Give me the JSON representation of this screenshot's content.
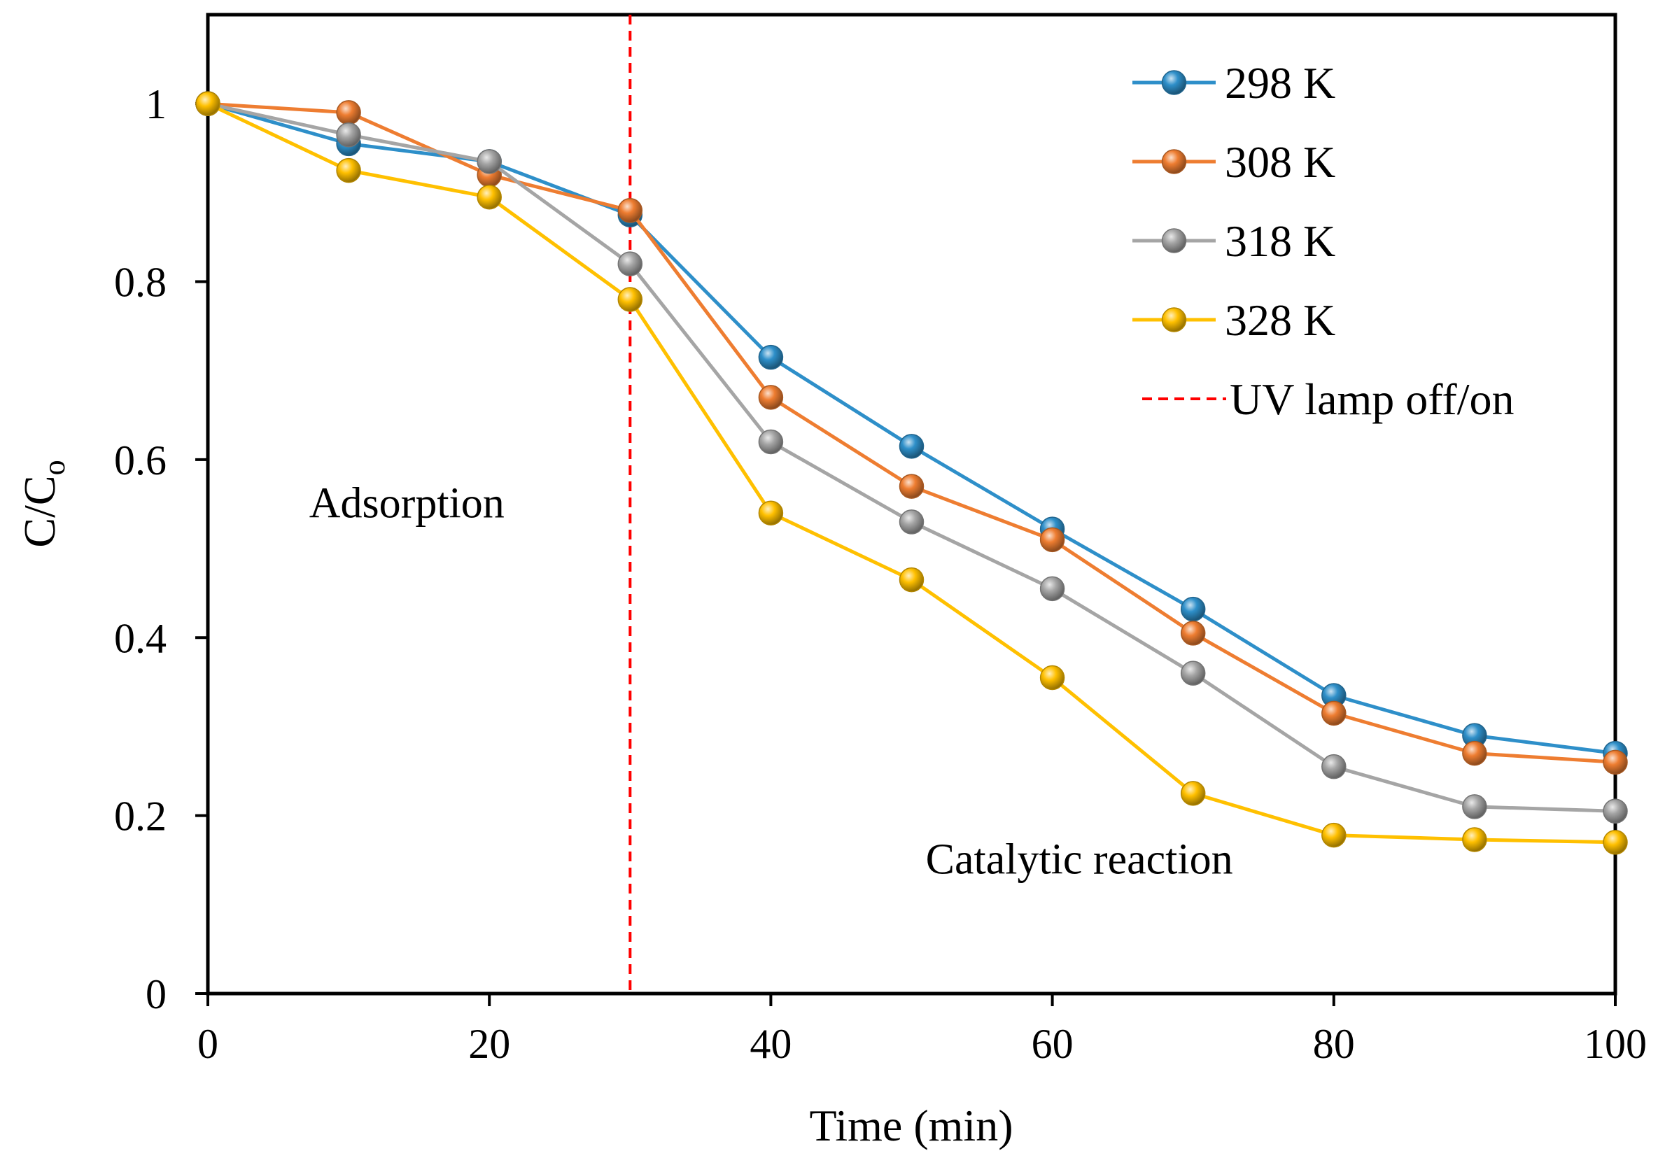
{
  "chart_data": {
    "type": "line",
    "xlabel": "Time (min)",
    "ylabel_main": "C/C",
    "ylabel_sub": "o",
    "x": [
      0,
      10,
      20,
      30,
      40,
      50,
      60,
      70,
      80,
      90,
      100
    ],
    "xlim": [
      0,
      100
    ],
    "ylim": [
      0,
      1.1
    ],
    "xticks": [
      0,
      20,
      40,
      60,
      80,
      100
    ],
    "xtick_labels": [
      "0",
      "20",
      "40",
      "60",
      "80",
      "100"
    ],
    "yticks": [
      0,
      0.2,
      0.4,
      0.6,
      0.8,
      1
    ],
    "ytick_labels": [
      "0",
      "0.2",
      "0.4",
      "0.6",
      "0.8",
      "1"
    ],
    "grid": false,
    "legend_position": "top-right",
    "series": [
      {
        "name": "298 K",
        "color": "#2E8FC9",
        "values": [
          1.0,
          0.955,
          0.935,
          0.875,
          0.715,
          0.615,
          0.522,
          0.432,
          0.335,
          0.29,
          0.27
        ]
      },
      {
        "name": "308 K",
        "color": "#EE7D31",
        "values": [
          1.0,
          0.99,
          0.92,
          0.88,
          0.67,
          0.57,
          0.51,
          0.405,
          0.315,
          0.27,
          0.26
        ]
      },
      {
        "name": "318 K",
        "color": "#A5A5A5",
        "values": [
          1.0,
          0.965,
          0.935,
          0.82,
          0.62,
          0.53,
          0.455,
          0.36,
          0.255,
          0.21,
          0.205
        ]
      },
      {
        "name": "328 K",
        "color": "#FFC000",
        "values": [
          1.0,
          0.925,
          0.895,
          0.78,
          0.54,
          0.465,
          0.355,
          0.225,
          0.178,
          0.173,
          0.17
        ]
      }
    ],
    "reference_line": {
      "name": "UV lamp off/on",
      "x": 30,
      "color": "#FF0000",
      "style": "dashed"
    },
    "annotations": [
      {
        "text": "Adsorption",
        "x": 7.2,
        "y": 0.535
      },
      {
        "text": "Catalytic reaction",
        "x": 51,
        "y": 0.135
      }
    ]
  }
}
